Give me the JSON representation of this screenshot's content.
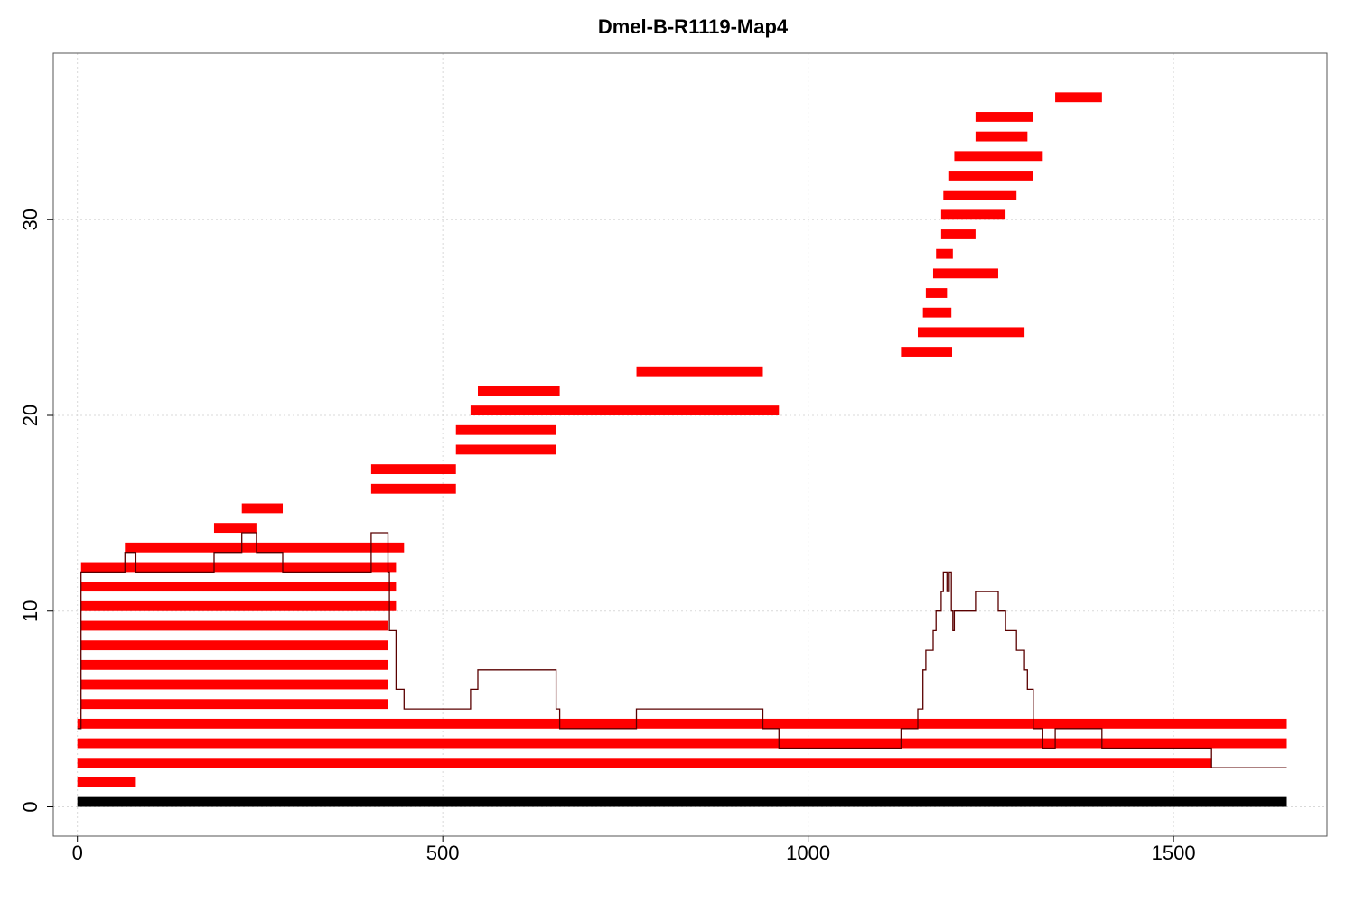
{
  "chart_data": {
    "type": "bar",
    "title": "Dmel-B-R1119-Map4",
    "xlabel": "",
    "ylabel": "",
    "xlim": [
      -33,
      1710
    ],
    "ylim": [
      -1.5,
      38.5
    ],
    "x_ticks": [
      0,
      500,
      1000,
      1500
    ],
    "x_tick_labels": [
      "0",
      "500",
      "1000",
      "1500"
    ],
    "y_ticks": [
      0,
      10,
      20,
      30
    ],
    "y_tick_labels": [
      "0",
      "10",
      "20",
      "30"
    ],
    "grid": true,
    "colors": {
      "segment": "#ff0000",
      "reference": "#000000",
      "coverage": "#5a0000",
      "grid": "#d9d9d9"
    },
    "reference": {
      "start": 0,
      "end": 1655,
      "y": 0.25
    },
    "series": [
      {
        "values": [
          {
            "start": 0,
            "end": 80,
            "y": 1.25
          },
          {
            "start": 0,
            "end": 1552,
            "y": 2.25
          },
          {
            "start": 0,
            "end": 1655,
            "y": 3.25
          },
          {
            "start": 0,
            "end": 1655,
            "y": 4.25
          },
          {
            "start": 5,
            "end": 425,
            "y": 5.25
          },
          {
            "start": 5,
            "end": 425,
            "y": 6.25
          },
          {
            "start": 5,
            "end": 425,
            "y": 7.25
          },
          {
            "start": 5,
            "end": 425,
            "y": 8.25
          },
          {
            "start": 5,
            "end": 425,
            "y": 9.25
          },
          {
            "start": 5,
            "end": 436,
            "y": 10.25
          },
          {
            "start": 5,
            "end": 436,
            "y": 11.25
          },
          {
            "start": 5,
            "end": 436,
            "y": 12.25
          },
          {
            "start": 65,
            "end": 447,
            "y": 13.25
          },
          {
            "start": 187,
            "end": 245,
            "y": 14.25
          },
          {
            "start": 225,
            "end": 281,
            "y": 15.25
          },
          {
            "start": 402,
            "end": 518,
            "y": 16.25
          },
          {
            "start": 402,
            "end": 518,
            "y": 17.25
          },
          {
            "start": 518,
            "end": 655,
            "y": 18.25
          },
          {
            "start": 518,
            "end": 655,
            "y": 19.25
          },
          {
            "start": 538,
            "end": 960,
            "y": 20.25
          },
          {
            "start": 548,
            "end": 660,
            "y": 21.25
          },
          {
            "start": 765,
            "end": 938,
            "y": 22.25
          },
          {
            "start": 1127,
            "end": 1197,
            "y": 23.25
          },
          {
            "start": 1150,
            "end": 1296,
            "y": 24.25
          },
          {
            "start": 1157,
            "end": 1196,
            "y": 25.25
          },
          {
            "start": 1161,
            "end": 1190,
            "y": 26.25
          },
          {
            "start": 1171,
            "end": 1260,
            "y": 27.25
          },
          {
            "start": 1175,
            "end": 1198,
            "y": 28.25
          },
          {
            "start": 1182,
            "end": 1229,
            "y": 29.25
          },
          {
            "start": 1182,
            "end": 1270,
            "y": 30.25
          },
          {
            "start": 1185,
            "end": 1285,
            "y": 31.25
          },
          {
            "start": 1193,
            "end": 1308,
            "y": 32.25
          },
          {
            "start": 1200,
            "end": 1321,
            "y": 33.25
          },
          {
            "start": 1229,
            "end": 1300,
            "y": 34.25
          },
          {
            "start": 1229,
            "end": 1308,
            "y": 35.25
          },
          {
            "start": 1338,
            "end": 1402,
            "y": 36.25
          }
        ]
      },
      {
        "type": "line",
        "values": [
          [
            0,
            4
          ],
          [
            5,
            4
          ],
          [
            5,
            12
          ],
          [
            65,
            12
          ],
          [
            65,
            13
          ],
          [
            80,
            13
          ],
          [
            80,
            12
          ],
          [
            187,
            12
          ],
          [
            187,
            13
          ],
          [
            225,
            13
          ],
          [
            225,
            14
          ],
          [
            245,
            14
          ],
          [
            245,
            13
          ],
          [
            281,
            13
          ],
          [
            281,
            12
          ],
          [
            402,
            12
          ],
          [
            402,
            14
          ],
          [
            425,
            14
          ],
          [
            425,
            12
          ],
          [
            427,
            12
          ],
          [
            427,
            9
          ],
          [
            436,
            9
          ],
          [
            436,
            6
          ],
          [
            447,
            6
          ],
          [
            447,
            5
          ],
          [
            538,
            5
          ],
          [
            538,
            6
          ],
          [
            548,
            6
          ],
          [
            548,
            7
          ],
          [
            655,
            7
          ],
          [
            655,
            5
          ],
          [
            660,
            5
          ],
          [
            660,
            4
          ],
          [
            765,
            4
          ],
          [
            765,
            5
          ],
          [
            938,
            5
          ],
          [
            938,
            4
          ],
          [
            960,
            4
          ],
          [
            960,
            3
          ],
          [
            1127,
            3
          ],
          [
            1127,
            4
          ],
          [
            1150,
            4
          ],
          [
            1150,
            5
          ],
          [
            1157,
            5
          ],
          [
            1157,
            7
          ],
          [
            1161,
            7
          ],
          [
            1161,
            8
          ],
          [
            1171,
            8
          ],
          [
            1171,
            9
          ],
          [
            1175,
            9
          ],
          [
            1175,
            10
          ],
          [
            1182,
            10
          ],
          [
            1182,
            11
          ],
          [
            1185,
            11
          ],
          [
            1185,
            12
          ],
          [
            1190,
            12
          ],
          [
            1190,
            11
          ],
          [
            1193,
            11
          ],
          [
            1193,
            12
          ],
          [
            1196,
            12
          ],
          [
            1196,
            10
          ],
          [
            1198,
            10
          ],
          [
            1198,
            9
          ],
          [
            1200,
            9
          ],
          [
            1200,
            10
          ],
          [
            1229,
            10
          ],
          [
            1229,
            11
          ],
          [
            1260,
            11
          ],
          [
            1260,
            10
          ],
          [
            1270,
            10
          ],
          [
            1270,
            9
          ],
          [
            1285,
            9
          ],
          [
            1285,
            8
          ],
          [
            1296,
            8
          ],
          [
            1296,
            7
          ],
          [
            1300,
            7
          ],
          [
            1300,
            6
          ],
          [
            1308,
            6
          ],
          [
            1308,
            4
          ],
          [
            1321,
            4
          ],
          [
            1321,
            3
          ],
          [
            1338,
            3
          ],
          [
            1338,
            4
          ],
          [
            1402,
            4
          ],
          [
            1402,
            3
          ],
          [
            1552,
            3
          ],
          [
            1552,
            2
          ],
          [
            1655,
            2
          ]
        ]
      }
    ]
  }
}
